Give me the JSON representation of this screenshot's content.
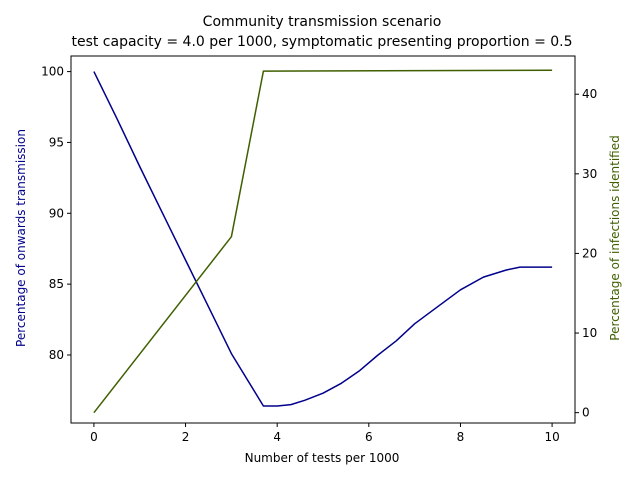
{
  "chart_data": {
    "type": "line",
    "title": "Community transmission scenario",
    "subtitle": "test capacity = 4.0 per 1000, symptomatic presenting proportion = 0.5",
    "xlabel": "Number of tests per 1000",
    "ylabel_left": "Percentage of onwards transmission",
    "ylabel_right": "Percentage of infections identified",
    "xlim": [
      -0.5,
      10.5
    ],
    "ylim_left": [
      75.2,
      101.1
    ],
    "ylim_right": [
      -1.3,
      44.8
    ],
    "xticks": [
      0,
      2,
      4,
      6,
      8,
      10
    ],
    "yticks_left": [
      80,
      85,
      90,
      95,
      100
    ],
    "yticks_right": [
      0,
      10,
      20,
      30,
      40
    ],
    "grid": false,
    "legend": "none",
    "series": [
      {
        "axis": "left",
        "color": "#00008b",
        "x": [
          0,
          0.5,
          1.0,
          1.5,
          2.0,
          2.5,
          3.0,
          3.7,
          4.0,
          4.3,
          4.6,
          5.0,
          5.4,
          5.8,
          6.2,
          6.6,
          7.0,
          7.5,
          8.0,
          8.5,
          9.0,
          9.3,
          9.6,
          10.0
        ],
        "values": [
          100,
          96.7,
          93.3,
          90.0,
          86.7,
          83.4,
          80.1,
          76.4,
          76.4,
          76.5,
          76.8,
          77.3,
          78.0,
          78.9,
          80.0,
          81.0,
          82.2,
          83.4,
          84.6,
          85.5,
          86.0,
          86.2,
          86.2,
          86.2
        ]
      },
      {
        "axis": "right",
        "color": "#3f5f00",
        "x": [
          0,
          3.0,
          3.7,
          10.0
        ],
        "values": [
          0,
          22.1,
          42.9,
          43.0
        ]
      }
    ]
  }
}
